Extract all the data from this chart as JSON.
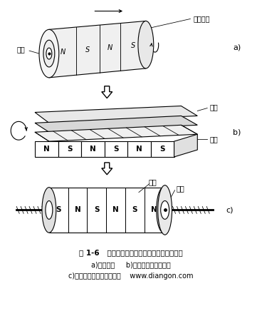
{
  "bg_color": "#ffffff",
  "line_color": "#000000",
  "fig_width": 3.68,
  "fig_height": 4.36,
  "dpi": 100,
  "title_text": "图 1-6   旋转电机演变为圆筒型直线电机的过程",
  "subtitle1": "a)旋转电机     b)扁平型单边直线电机",
  "subtitle2": "c)圆筒型（管型）直线电机    www.diangon.com",
  "label_a": "a)",
  "label_b": "b)",
  "label_c": "c)",
  "label_dingzi": "定子磁场",
  "label_zhuanzi": "转子",
  "label_ciji": "次级",
  "label_chuji_b": "初级",
  "label_chuji_c": "初级",
  "label_ciji_c": "次级",
  "pole_labels_b": [
    "N",
    "S",
    "N",
    "S",
    "N",
    "S"
  ],
  "pole_labels_c": [
    "S",
    "N",
    "S",
    "N",
    "S",
    "N"
  ]
}
